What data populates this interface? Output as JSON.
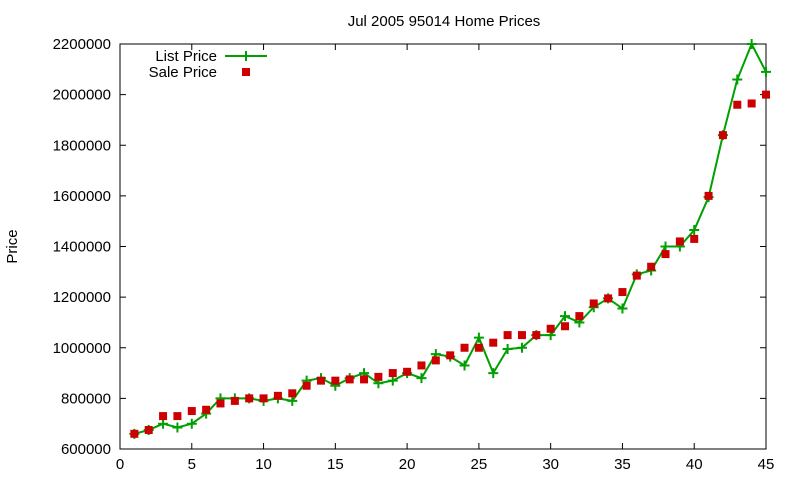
{
  "chart_data": {
    "type": "line",
    "title": "Jul 2005 95014 Home Prices",
    "xlabel": "",
    "ylabel": "Price",
    "xlim": [
      0,
      45
    ],
    "ylim": [
      600000,
      2200000
    ],
    "xticks": [
      0,
      5,
      10,
      15,
      20,
      25,
      30,
      35,
      40,
      45
    ],
    "yticks": [
      600000,
      800000,
      1000000,
      1200000,
      1400000,
      1600000,
      1800000,
      2000000,
      2200000
    ],
    "grid": false,
    "legend_position": "top-left",
    "x": [
      1,
      2,
      3,
      4,
      5,
      6,
      7,
      8,
      9,
      10,
      11,
      12,
      13,
      14,
      15,
      16,
      17,
      18,
      19,
      20,
      21,
      22,
      23,
      24,
      25,
      26,
      27,
      28,
      29,
      30,
      31,
      32,
      33,
      34,
      35,
      36,
      37,
      38,
      39,
      40,
      41,
      42,
      43,
      44,
      45
    ],
    "series": [
      {
        "name": "List Price",
        "style": "line-points",
        "color": "#00a000",
        "values": [
          660000,
          675000,
          700000,
          685000,
          700000,
          740000,
          800000,
          800000,
          800000,
          790000,
          800000,
          790000,
          870000,
          880000,
          850000,
          880000,
          900000,
          860000,
          870000,
          900000,
          880000,
          975000,
          965000,
          930000,
          1040000,
          900000,
          995000,
          1000000,
          1050000,
          1050000,
          1125000,
          1100000,
          1160000,
          1195000,
          1155000,
          1290000,
          1305000,
          1400000,
          1400000,
          1465000,
          1595000,
          1840000,
          2060000,
          2200000,
          2090000
        ]
      },
      {
        "name": "Sale Price",
        "style": "points",
        "color": "#cc0000",
        "values": [
          660000,
          675000,
          730000,
          730000,
          750000,
          755000,
          780000,
          790000,
          800000,
          800000,
          810000,
          820000,
          850000,
          870000,
          870000,
          875000,
          875000,
          885000,
          900000,
          905000,
          930000,
          950000,
          970000,
          1000000,
          1000000,
          1020000,
          1050000,
          1050000,
          1050000,
          1075000,
          1085000,
          1125000,
          1175000,
          1195000,
          1220000,
          1285000,
          1320000,
          1370000,
          1420000,
          1430000,
          1600000,
          1840000,
          1960000,
          1965000,
          2000000
        ]
      }
    ]
  }
}
